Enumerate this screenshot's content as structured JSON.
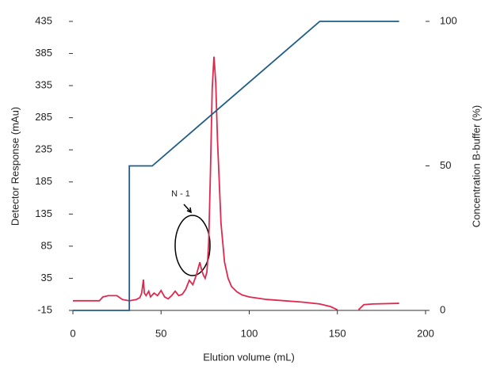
{
  "chart_data": {
    "type": "line",
    "xlabel": "Elution volume (mL)",
    "ylabel": "Detector Response (mAu)",
    "y2label": "Concentration B-buffer (%)",
    "annotation": "N - 1",
    "xlim": [
      0,
      200
    ],
    "xticks": [
      0,
      50,
      100,
      150,
      200
    ],
    "ylim": [
      -15,
      435
    ],
    "yticks": [
      -15,
      35,
      85,
      135,
      185,
      235,
      285,
      335,
      385,
      435
    ],
    "y2lim": [
      0,
      100
    ],
    "y2ticks": [
      0,
      50,
      100
    ],
    "series": [
      {
        "color": "#e0284f",
        "x": [
          0,
          15,
          17,
          20,
          25,
          28,
          32,
          36,
          38,
          39,
          40,
          40.5,
          41.5,
          43,
          44,
          46,
          48,
          50,
          52,
          54,
          56,
          58,
          60,
          62,
          64,
          66,
          68,
          70,
          72,
          73,
          74,
          75,
          76,
          77,
          78,
          79,
          80,
          81,
          82,
          84,
          86,
          88,
          90,
          93,
          96,
          100,
          110,
          120,
          130,
          140,
          146,
          150,
          156,
          162,
          165,
          170,
          185
        ],
        "values": [
          0,
          0,
          6,
          8,
          8,
          2,
          0,
          2,
          5,
          12,
          33,
          12,
          8,
          15,
          6,
          12,
          8,
          16,
          6,
          3,
          8,
          15,
          8,
          10,
          18,
          32,
          25,
          40,
          60,
          48,
          40,
          35,
          45,
          90,
          200,
          330,
          380,
          340,
          250,
          120,
          60,
          35,
          22,
          14,
          9,
          6,
          2,
          0,
          -2,
          -5,
          -9,
          -14,
          null,
          -14,
          -6,
          -5,
          -4
        ]
      },
      {
        "color": "#1f5d86",
        "axis": "y2",
        "x": [
          0,
          32,
          32,
          45,
          140,
          185
        ],
        "values": [
          0,
          0,
          50,
          50,
          100,
          100
        ]
      }
    ]
  }
}
